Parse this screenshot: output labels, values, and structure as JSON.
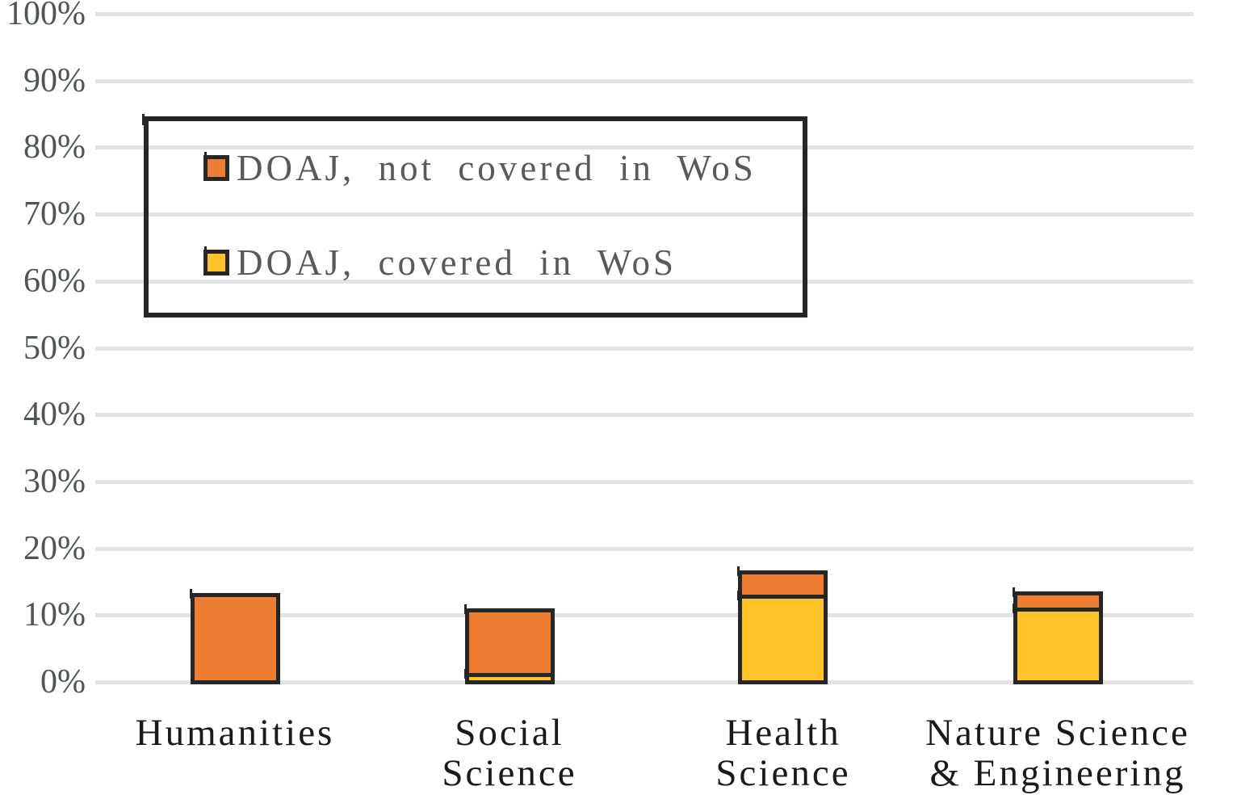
{
  "chart_data": {
    "type": "bar",
    "stacked": true,
    "title": "",
    "categories": [
      "Humanities",
      "Social Science",
      "Health Science",
      "Nature Science & Engineering"
    ],
    "category_display_lines": [
      [
        "Humanities"
      ],
      [
        "Social",
        "Science"
      ],
      [
        "Health",
        "Science"
      ],
      [
        "Nature Science",
        "& Engineering"
      ]
    ],
    "series": [
      {
        "name": "DOAJ, covered in WoS",
        "color": "#FDC328",
        "values": [
          0,
          1.7,
          13.4,
          11.5
        ]
      },
      {
        "name": "DOAJ, not covered in WoS",
        "color": "#ED7D31",
        "values": [
          13.7,
          9.7,
          3.6,
          2.4
        ]
      }
    ],
    "totals_percent": [
      13.7,
      11.4,
      17.0,
      13.9
    ],
    "y_axis": {
      "min": 0,
      "max": 100,
      "tick_step": 10,
      "ticks": [
        "0%",
        "10%",
        "20%",
        "30%",
        "40%",
        "50%",
        "60%",
        "70%",
        "80%",
        "90%",
        "100%"
      ],
      "unit": "%",
      "grid": true
    },
    "x_axis": {
      "label": ""
    },
    "legend": {
      "position": "upper-left",
      "border_color": "#262626",
      "entries": [
        {
          "label": "DOAJ, not covered in WoS",
          "color": "#ED7D31"
        },
        {
          "label": "DOAJ, covered in WoS",
          "color": "#FDC328"
        }
      ]
    },
    "colors": {
      "bar_border": "#262626",
      "gridline": "#e3e3e3",
      "tick_label": "#4f5555",
      "legend_text": "#595959",
      "category_label": "#1a1a1a",
      "background": "#ffffff"
    }
  }
}
